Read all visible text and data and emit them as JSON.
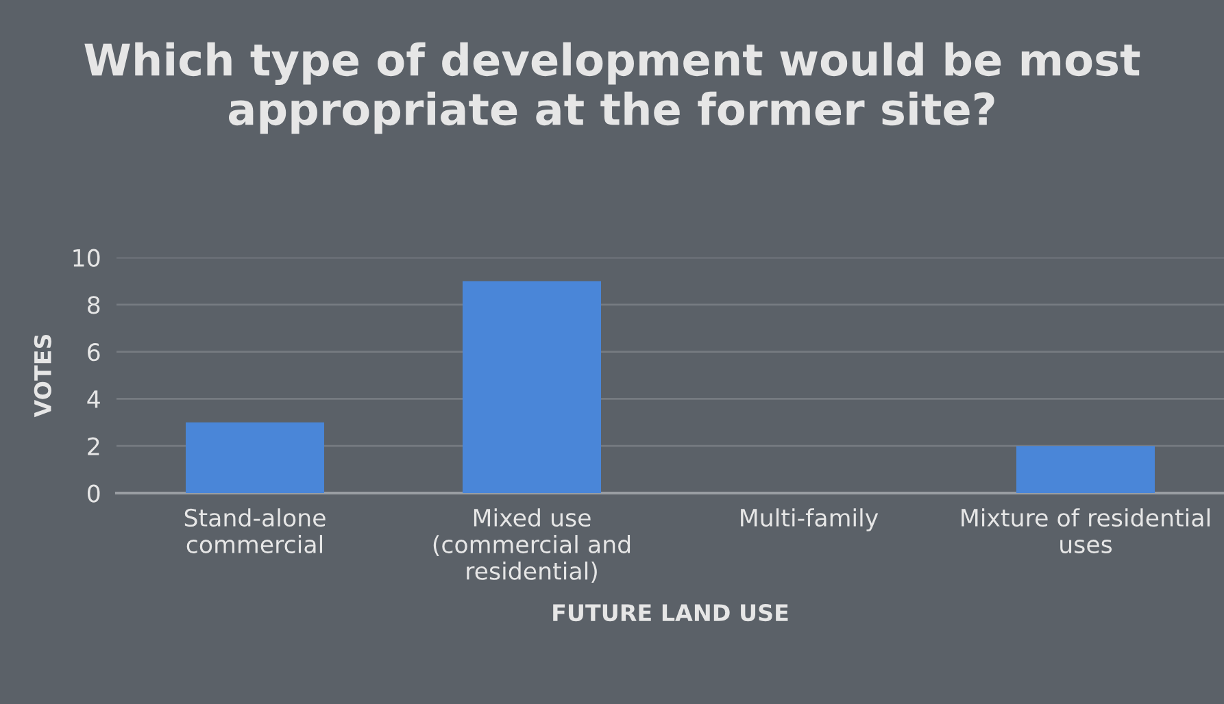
{
  "chart_data": {
    "type": "bar",
    "title": "Which type of development would be most appropriate at the former site?",
    "categories": [
      "Stand-alone\ncommercial",
      "Mixed use\n(commercial and\nresidential)",
      "Multi-family",
      "Mixture of residential\nuses"
    ],
    "values": [
      3,
      9,
      0,
      2
    ],
    "color": "#4a86d8",
    "xlabel": "FUTURE LAND USE",
    "ylabel": "VOTES",
    "ylim": [
      0,
      10
    ],
    "yticks": [
      0,
      2,
      4,
      6,
      8,
      10
    ],
    "grid": "y"
  }
}
